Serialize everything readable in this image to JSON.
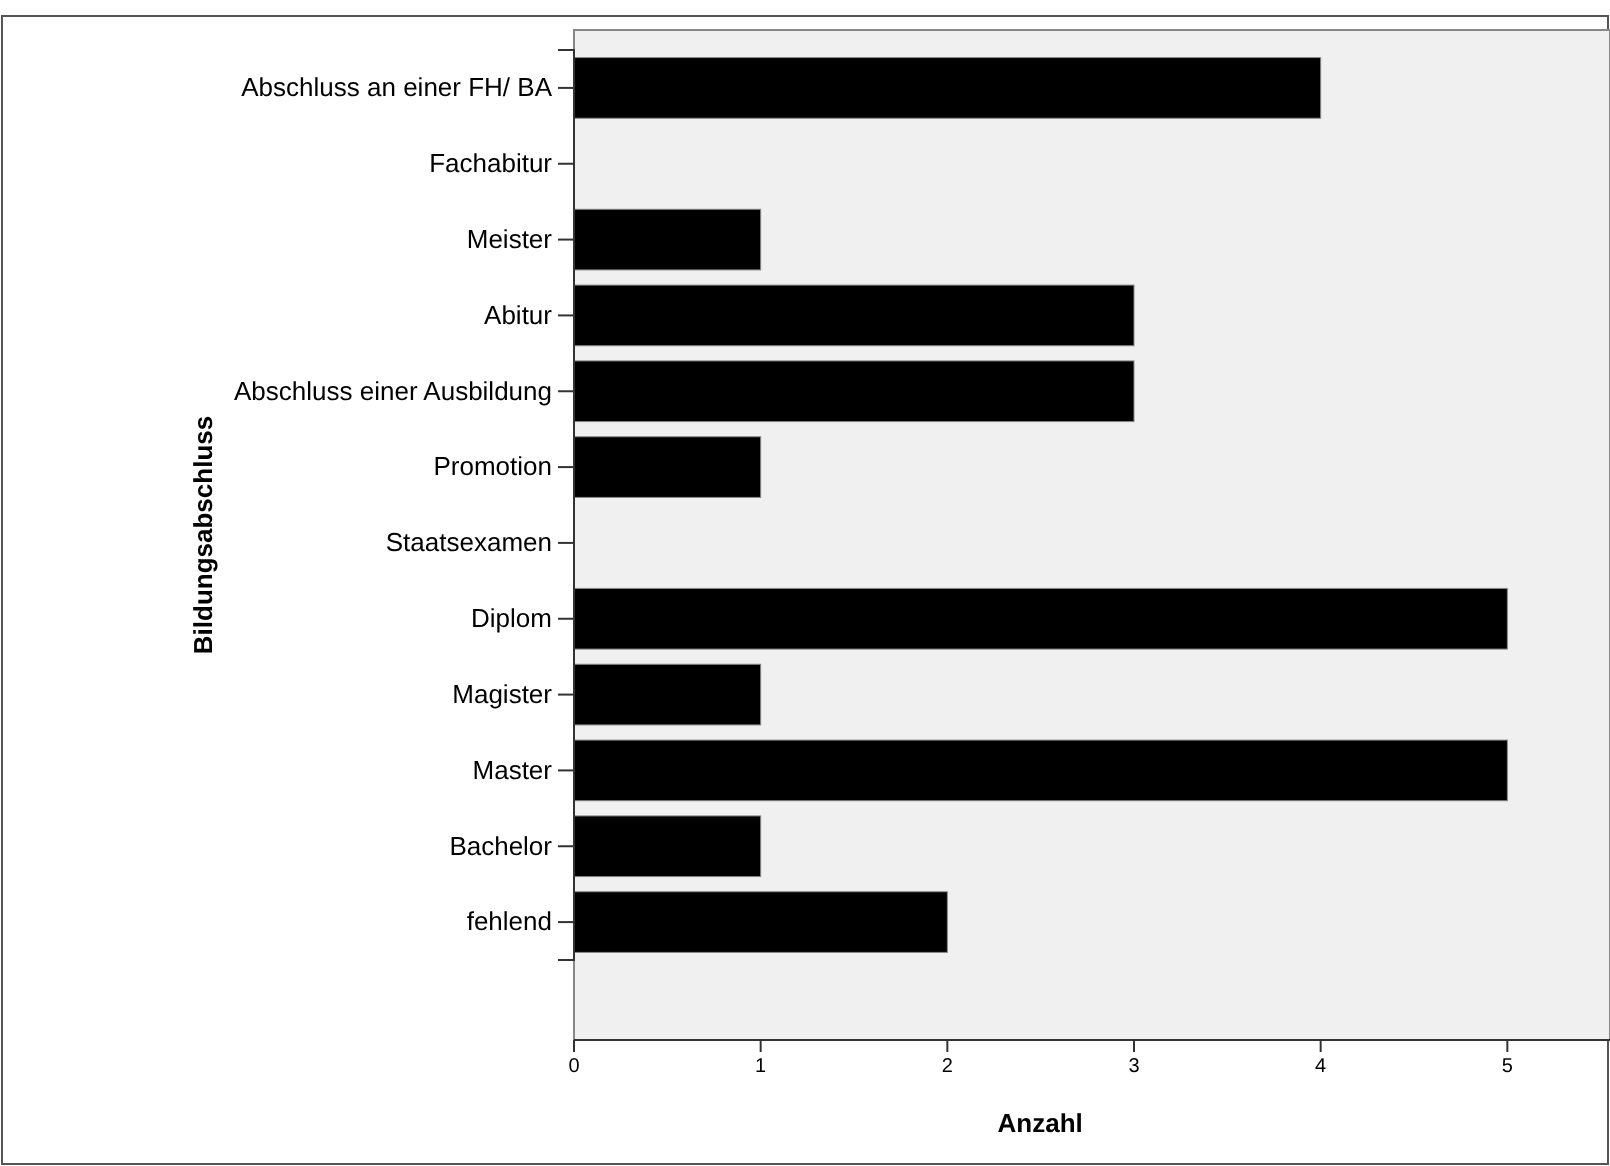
{
  "chart_data": {
    "type": "bar",
    "orientation": "horizontal",
    "xlabel": "Anzahl",
    "ylabel": "Bildungsabschluss",
    "categories": [
      "Abschluss an einer FH/ BA",
      "Fachabitur",
      "Meister",
      "Abitur",
      "Abschluss einer Ausbildung",
      "Promotion",
      "Staatsexamen",
      "Diplom",
      "Magister",
      "Master",
      "Bachelor",
      "fehlend"
    ],
    "values": [
      4,
      0,
      1,
      3,
      3,
      1,
      0,
      5,
      1,
      5,
      1,
      2
    ],
    "color": "#000000",
    "xlim": [
      0,
      5.55
    ],
    "xticks": [
      0,
      1,
      2,
      3,
      4,
      5
    ],
    "grid": false
  }
}
